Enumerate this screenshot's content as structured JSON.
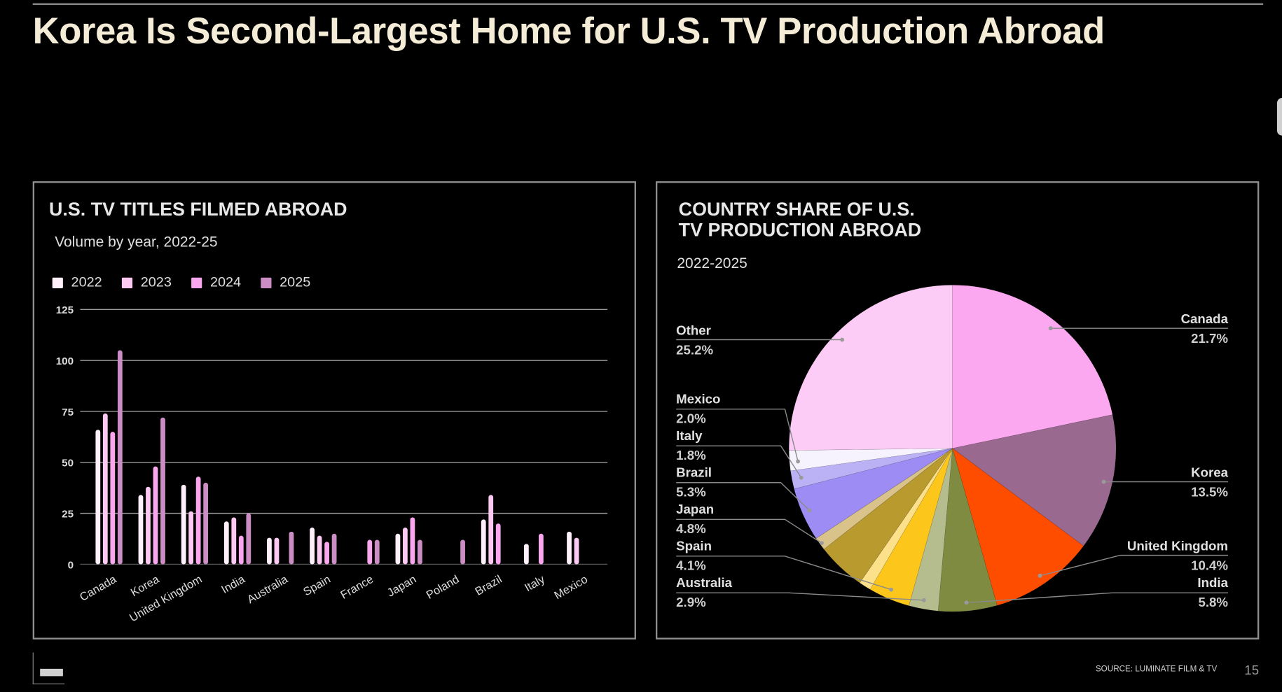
{
  "title": "Korea Is Second-Largest Home for U.S. TV Production Abroad",
  "footer": {
    "source": "SOURCE: LUMINATE FILM & TV",
    "page_number": "15"
  },
  "chart_data": [
    {
      "type": "bar",
      "title": "U.S. TV TITLES FILMED ABROAD",
      "subtitle": "Volume by year, 2022-25",
      "legend_placement": "top-left",
      "grid": true,
      "ylim": [
        0,
        125
      ],
      "yticks": [
        "0",
        "25",
        "50",
        "75",
        "100",
        "125"
      ],
      "categories": [
        "Canada",
        "Korea",
        "United Kingdom",
        "India",
        "Australia",
        "Spain",
        "France",
        "Japan",
        "Poland",
        "Brazil",
        "Italy",
        "Mexico"
      ],
      "series": [
        {
          "name": "2022",
          "color": "#fff0fb",
          "values": [
            66,
            34,
            39,
            21,
            13,
            18,
            0,
            15,
            0,
            22,
            10,
            16
          ]
        },
        {
          "name": "2023",
          "color": "#fdc9f3",
          "values": [
            74,
            38,
            26,
            23,
            13,
            14,
            0,
            18,
            0,
            34,
            0,
            13
          ]
        },
        {
          "name": "2024",
          "color": "#f9a6ee",
          "values": [
            65,
            48,
            43,
            14,
            0,
            11,
            12,
            23,
            0,
            20,
            15,
            0
          ]
        },
        {
          "name": "2025",
          "color": "#cc8dc4",
          "values": [
            105,
            72,
            40,
            25,
            16,
            15,
            12,
            12,
            12,
            0,
            0,
            0
          ]
        }
      ]
    },
    {
      "type": "pie",
      "title_line1": "COUNTRY SHARE OF U.S.",
      "title_line2": "TV PRODUCTION ABROAD",
      "subtitle": "2022-2025",
      "slices": [
        {
          "label": "Canada",
          "value": 21.7,
          "pct": "21.7%",
          "color": "#fba8f0"
        },
        {
          "label": "Korea",
          "value": 13.5,
          "pct": "13.5%",
          "color": "#9a698f"
        },
        {
          "label": "United Kingdom",
          "value": 10.4,
          "pct": "10.4%",
          "color": "#ff4d00"
        },
        {
          "label": "India",
          "value": 5.8,
          "pct": "5.8%",
          "color": "#7e8b41"
        },
        {
          "label": "Australia",
          "value": 2.9,
          "pct": "2.9%",
          "color": "#b5bd8f"
        },
        {
          "label": "Spain",
          "value": 4.1,
          "pct": "4.1%",
          "color": "#fdc61b"
        },
        {
          "label": null,
          "value": 1.2,
          "pct": null,
          "color": "#fde08a"
        },
        {
          "label": "Japan",
          "value": 4.8,
          "pct": "4.8%",
          "color": "#b89a2f"
        },
        {
          "label": null,
          "value": 1.3,
          "pct": null,
          "color": "#d9c38a"
        },
        {
          "label": "Brazil",
          "value": 5.3,
          "pct": "5.3%",
          "color": "#9d8cf3"
        },
        {
          "label": "Italy",
          "value": 1.8,
          "pct": "1.8%",
          "color": "#bbb2f6"
        },
        {
          "label": "Mexico",
          "value": 2.0,
          "pct": "2.0%",
          "color": "#f6f3fe"
        },
        {
          "label": "Other",
          "value": 25.2,
          "pct": "25.2%",
          "color": "#fdccf6"
        }
      ]
    }
  ]
}
